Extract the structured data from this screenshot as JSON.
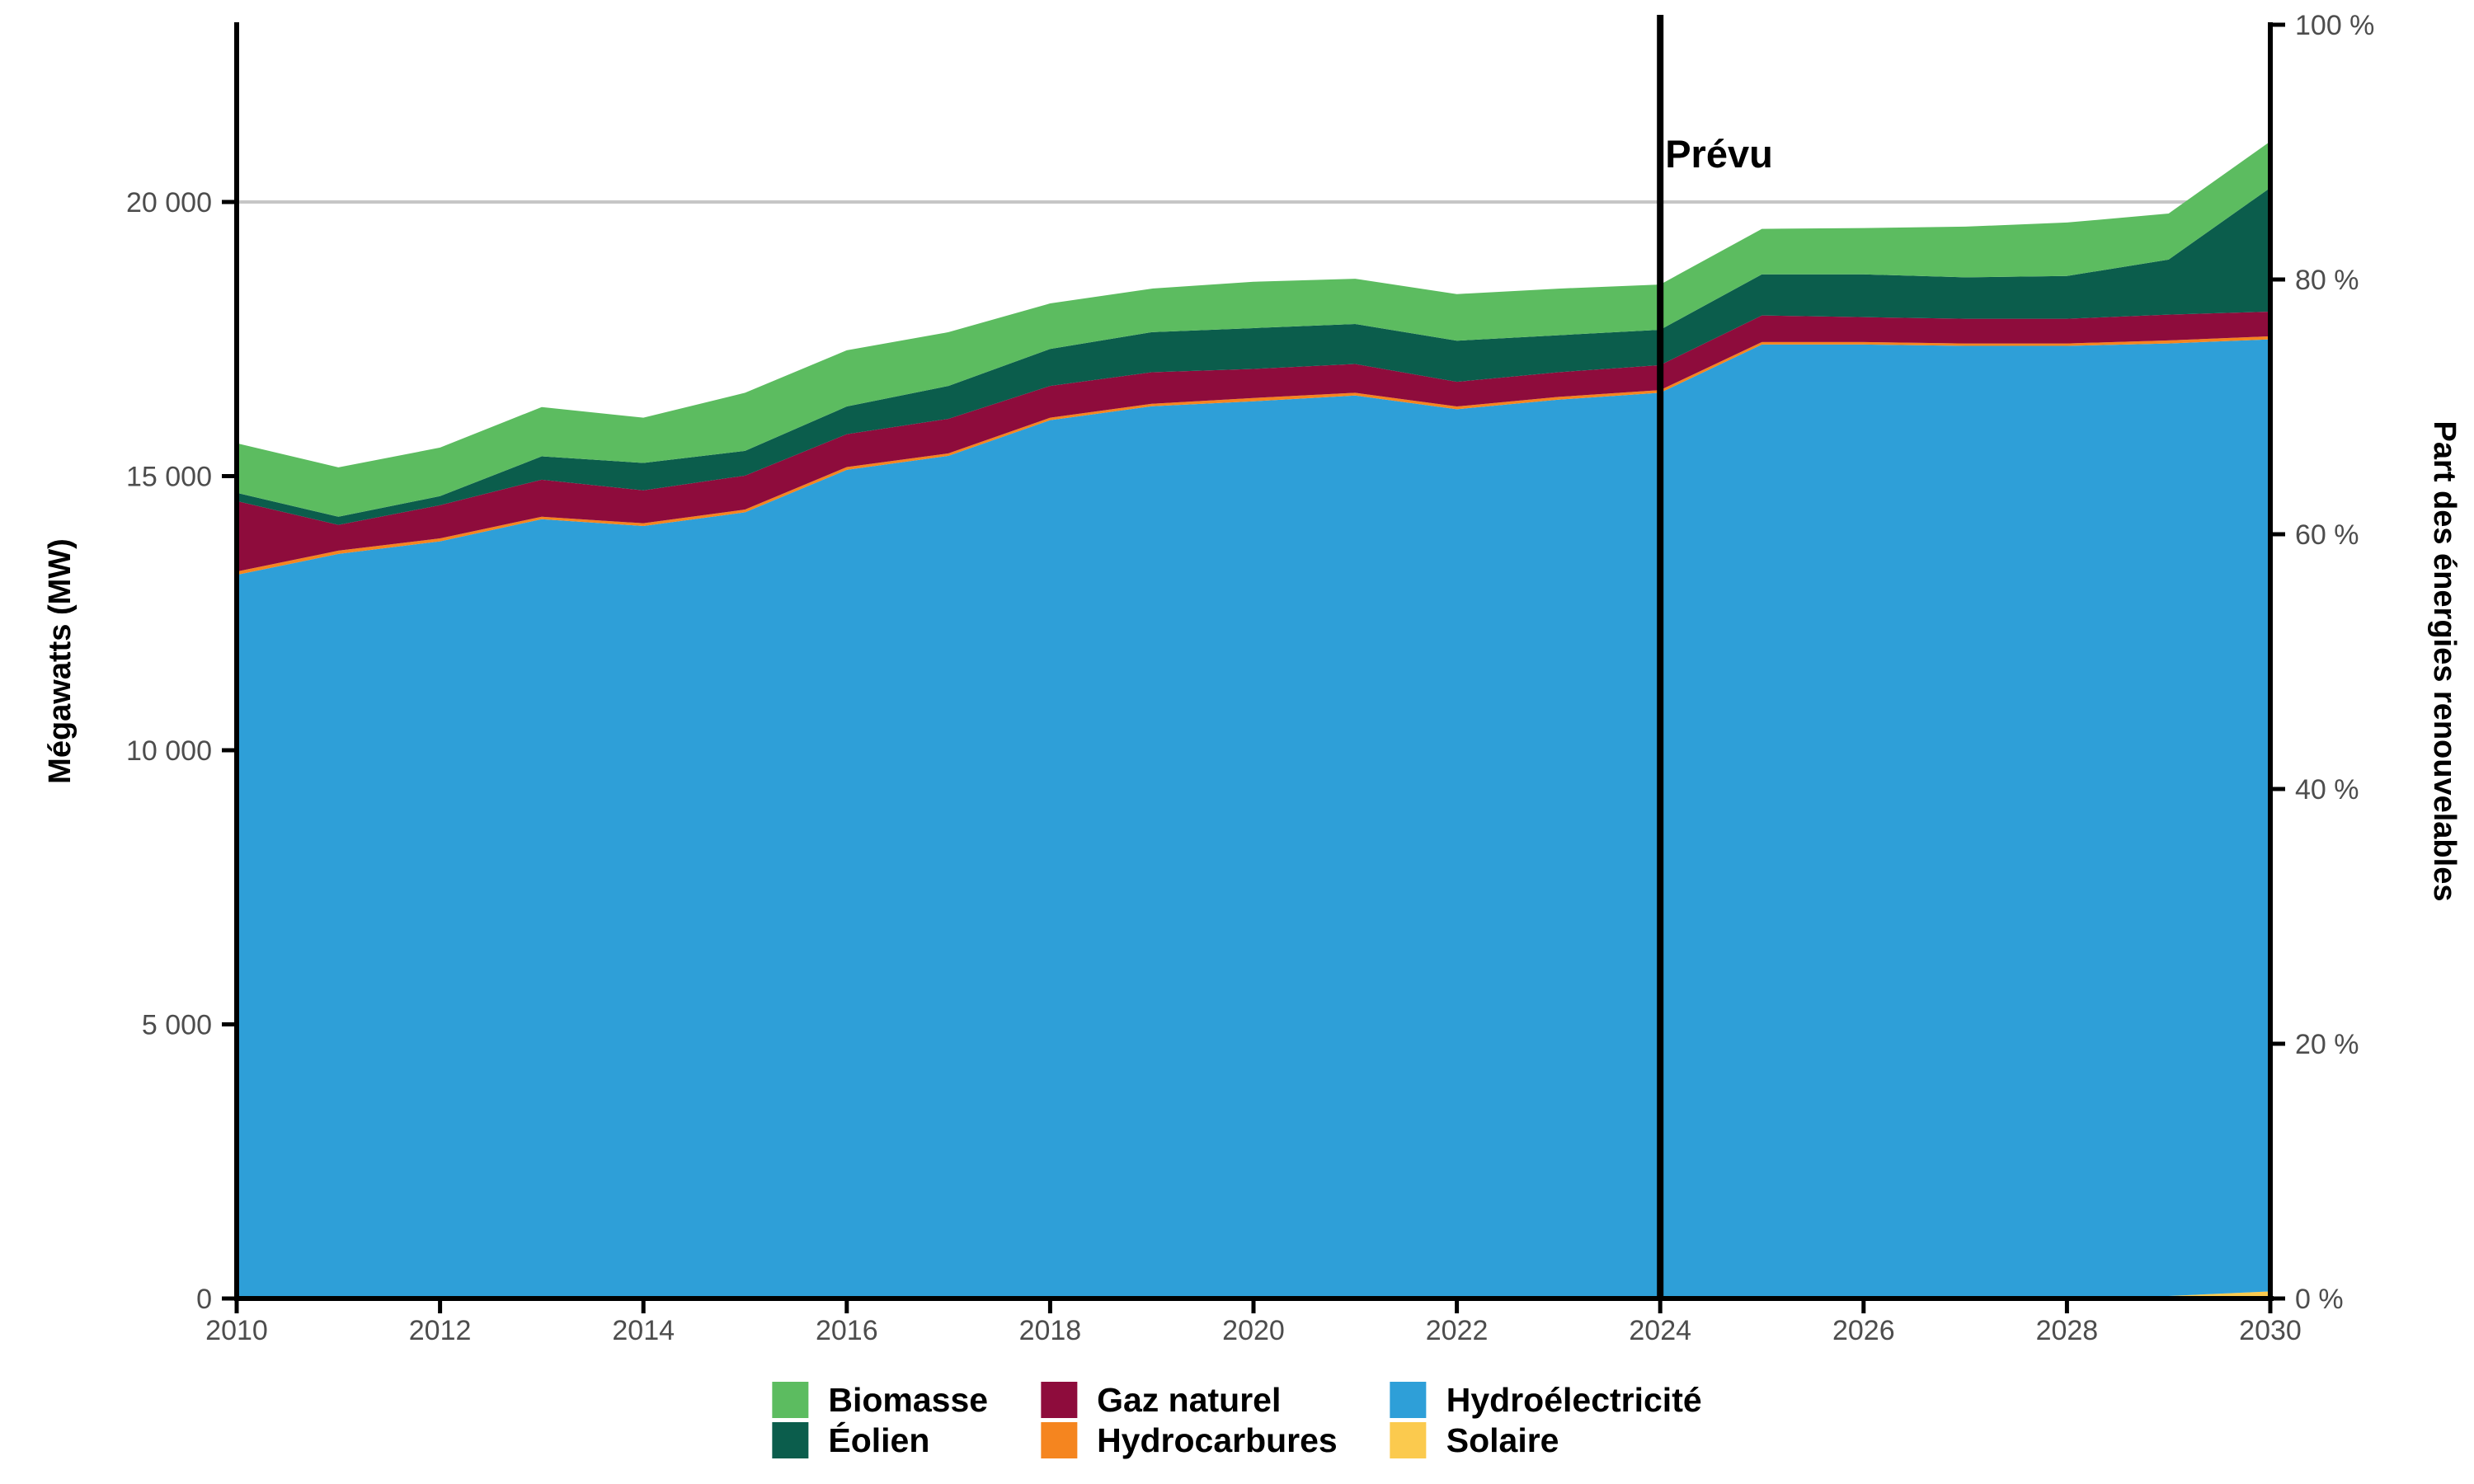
{
  "chart_data": {
    "type": "area",
    "stacked": true,
    "x": [
      2010,
      2011,
      2012,
      2013,
      2014,
      2015,
      2016,
      2017,
      2018,
      2019,
      2020,
      2021,
      2022,
      2023,
      2024,
      2025,
      2026,
      2027,
      2028,
      2029,
      2030
    ],
    "series": [
      {
        "name": "Solaire",
        "color": "#fbca4e",
        "values": [
          0,
          0,
          0,
          0,
          0,
          0,
          0,
          0,
          0,
          0,
          0,
          0,
          0,
          0,
          0,
          0,
          0,
          0,
          15,
          45,
          130
        ]
      },
      {
        "name": "Hydroélectricité",
        "color": "#2e9fd8",
        "values": [
          13200,
          13580,
          13810,
          14215,
          14090,
          14340,
          15115,
          15370,
          16020,
          16275,
          16365,
          16470,
          16220,
          16395,
          16520,
          17400,
          17400,
          17375,
          17360,
          17375,
          17365
        ]
      },
      {
        "name": "Hydrocarbures",
        "color": "#f5851f",
        "values": [
          60,
          60,
          55,
          45,
          50,
          50,
          50,
          45,
          45,
          45,
          60,
          50,
          50,
          50,
          50,
          45,
          45,
          45,
          45,
          55,
          55
        ]
      },
      {
        "name": "Gaz naturel",
        "color": "#8e0c3c",
        "values": [
          1285,
          470,
          605,
          675,
          600,
          620,
          600,
          630,
          580,
          575,
          530,
          525,
          450,
          450,
          455,
          485,
          455,
          450,
          450,
          470,
          450
        ]
      },
      {
        "name": "Éolien",
        "color": "#0b5d4c",
        "values": [
          150,
          150,
          165,
          425,
          500,
          450,
          505,
          600,
          675,
          730,
          745,
          730,
          750,
          675,
          645,
          750,
          780,
          755,
          780,
          1005,
          2260
        ]
      },
      {
        "name": "Biomasse",
        "color": "#5cbc60",
        "values": [
          905,
          900,
          885,
          900,
          825,
          1060,
          1025,
          980,
          830,
          795,
          845,
          825,
          850,
          850,
          825,
          830,
          845,
          925,
          975,
          840,
          845
        ]
      }
    ],
    "left_axis": {
      "title": "Mégawatts (MW)",
      "ticks": [
        0,
        5000,
        10000,
        15000,
        20000
      ],
      "tick_labels": [
        "0",
        "5 000",
        "10 000",
        "15 000",
        "20 000"
      ],
      "value_max": 23233
    },
    "right_axis": {
      "title": "Part des énergies renouvelables",
      "ticks": [
        0,
        20,
        40,
        60,
        80,
        100
      ],
      "tick_labels": [
        "0 %",
        "20 %",
        "40 %",
        "60 %",
        "80 %",
        "100 %"
      ]
    },
    "x_axis": {
      "range": [
        2010,
        2030
      ],
      "ticks": [
        2010,
        2012,
        2014,
        2016,
        2018,
        2020,
        2022,
        2024,
        2026,
        2028,
        2030
      ],
      "tick_labels": [
        "2010",
        "2012",
        "2014",
        "2016",
        "2018",
        "2020",
        "2022",
        "2024",
        "2026",
        "2028",
        "2030"
      ]
    },
    "reference_line": {
      "value": 20000,
      "color": "#c6c6c6"
    },
    "forecast": {
      "x": 2024,
      "label": "Prévu",
      "line_color": "#000000"
    },
    "legend": {
      "position": "bottom",
      "items": [
        {
          "label": "Biomasse",
          "color": "#5cbc60"
        },
        {
          "label": "Éolien",
          "color": "#0b5d4c"
        },
        {
          "label": "Gaz naturel",
          "color": "#8e0c3c"
        },
        {
          "label": "Hydrocarbures",
          "color": "#f5851f"
        },
        {
          "label": "Hydroélectricité",
          "color": "#2e9fd8"
        },
        {
          "label": "Solaire",
          "color": "#fbca4e"
        }
      ]
    }
  }
}
